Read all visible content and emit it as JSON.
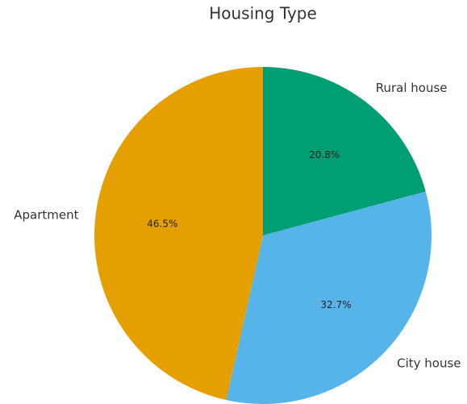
{
  "chart_data": {
    "type": "pie",
    "title": "Housing Type",
    "categories": [
      "Rural house",
      "City house",
      "Apartment"
    ],
    "values": [
      20.8,
      32.7,
      46.5
    ],
    "value_labels": [
      "20.8%",
      "32.7%",
      "46.5%"
    ],
    "colors": [
      "#009e73",
      "#56b4e9",
      "#e69f00"
    ]
  }
}
